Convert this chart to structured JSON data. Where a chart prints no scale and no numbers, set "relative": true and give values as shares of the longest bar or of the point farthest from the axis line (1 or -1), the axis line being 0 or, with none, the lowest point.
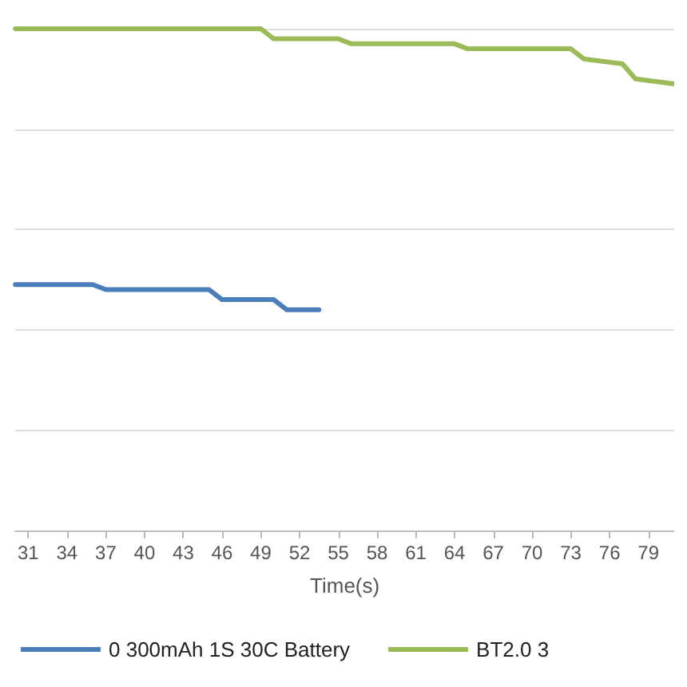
{
  "chart_data": {
    "type": "line",
    "relative": true,
    "xlabel": "Time(s)",
    "xlim": [
      30,
      81
    ],
    "xticks": [
      31,
      34,
      37,
      40,
      43,
      46,
      49,
      52,
      55,
      58,
      61,
      64,
      67,
      70,
      73,
      76,
      79
    ],
    "grid": "y",
    "legend": "bottom",
    "marker": "none",
    "line_style": "solid",
    "series": [
      {
        "name": "0 300mAh 1S 30C Battery",
        "color": "#4a7ebb",
        "x": [
          30,
          36,
          37,
          45,
          46,
          50,
          51,
          53.5
        ],
        "values": [
          0.49,
          0.49,
          0.48,
          0.48,
          0.46,
          0.46,
          0.44,
          0.44
        ]
      },
      {
        "name": "BT2.0 3",
        "color": "#9bbb59",
        "x": [
          30,
          49,
          50,
          55,
          56,
          64,
          65,
          73,
          74,
          77,
          78,
          81
        ],
        "values": [
          1,
          1,
          0.98,
          0.98,
          0.97,
          0.97,
          0.96,
          0.96,
          0.94,
          0.93,
          0.9,
          0.89
        ]
      }
    ]
  }
}
